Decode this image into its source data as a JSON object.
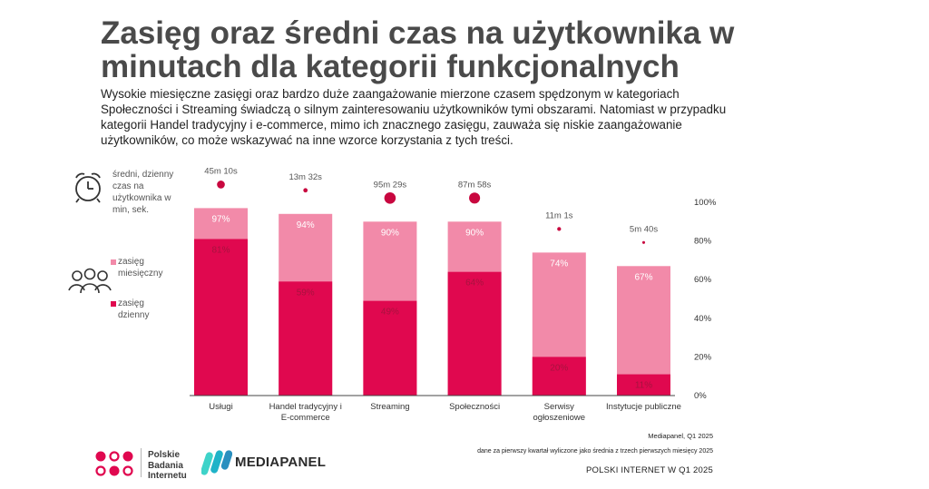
{
  "title": "Zasięg oraz średni czas na użytkownika w minutach dla kategorii funkcjonalnych",
  "description": "Wysokie miesięczne zasięgi oraz bardzo duże zaangażowanie mierzone czasem spędzonym w kategoriach Społeczności i Streaming świadczą o silnym zainteresowaniu użytkowników tymi obszarami. Natomiast w przypadku kategorii Handel tradycyjny i e-commerce, mimo ich znacznego zasięgu, zauważa się niskie zaangażowanie użytkowników, co może wskazywać na inne wzorce korzystania z tych treści.",
  "legend": {
    "time_label": "średni, dzienny czas na użytkownika w min, sek.",
    "monthly_label": "zasięg miesięczny",
    "daily_label": "zasięg dzienny"
  },
  "colors": {
    "monthly": "#f28aa9",
    "daily": "#e0084f",
    "dot": "#c8073f",
    "axis": "#444444"
  },
  "icons": {
    "clock": "alarm-clock-icon",
    "users": "users-group-icon"
  },
  "footer": {
    "source": "Mediapanel, Q1 2025",
    "note": "dane za pierwszy kwartał wyliczone jako średnia z trzech pierwszych miesięcy 2025",
    "publication": "POLSKI INTERNET W Q1 2025"
  },
  "logos": {
    "pbi": [
      "Polskie",
      "Badania",
      "Internetu"
    ],
    "mediapanel": "MEDIAPANEL"
  },
  "chart_data": {
    "type": "bar",
    "categories": [
      "Usługi",
      "Handel tradycyjny i E-commerce",
      "Streaming",
      "Społeczności",
      "Serwisy ogłoszeniowe",
      "Instytucje publiczne"
    ],
    "category_lines": [
      [
        "Usługi"
      ],
      [
        "Handel tradycyjny i",
        "E-commerce"
      ],
      [
        "Streaming"
      ],
      [
        "Społeczności"
      ],
      [
        "Serwisy",
        "ogłoszeniowe"
      ],
      [
        "Instytucje publiczne"
      ]
    ],
    "series": [
      {
        "name": "zasięg miesięczny",
        "values": [
          97,
          94,
          90,
          90,
          74,
          67
        ],
        "labels": [
          "97%",
          "94%",
          "90%",
          "90%",
          "74%",
          "67%"
        ]
      },
      {
        "name": "zasięg dzienny",
        "values": [
          81,
          59,
          49,
          64,
          20,
          11
        ],
        "labels": [
          "81%",
          "59%",
          "49%",
          "64%",
          "20%",
          "11%"
        ]
      }
    ],
    "time_per_user": {
      "name": "średni, dzienny czas na użytkownika w min, sek.",
      "values_min": [
        45.17,
        13.53,
        95.48,
        87.97,
        11.02,
        5.67
      ],
      "labels": [
        "45m 10s",
        "13m 32s",
        "95m 29s",
        "87m 58s",
        "11m 1s",
        "5m 40s"
      ]
    },
    "y_ticks": [
      "0%",
      "20%",
      "40%",
      "60%",
      "80%",
      "100%"
    ],
    "ylim": [
      0,
      100
    ],
    "grid": false
  }
}
